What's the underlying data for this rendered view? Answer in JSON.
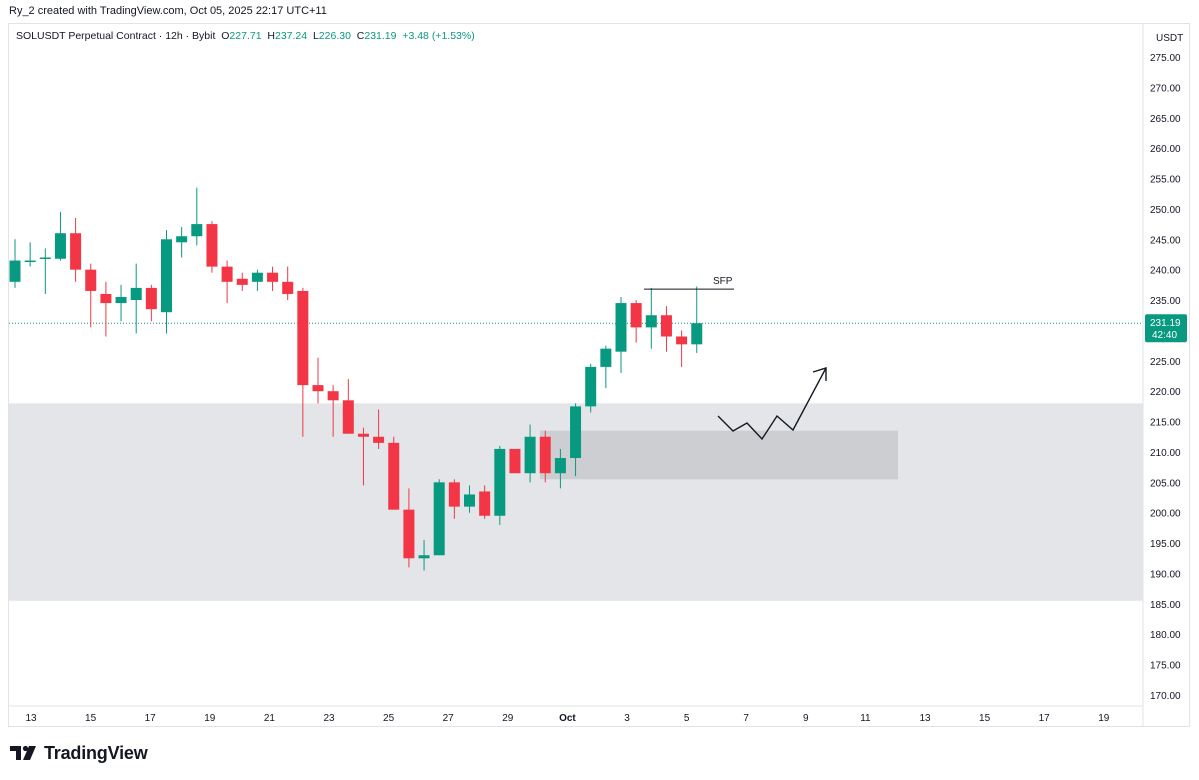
{
  "credit": "Ry_2 created with TradingView.com, Oct 05, 2025 22:17 UTC+11",
  "legend": {
    "symbol": "SOLUSDT Perpetual Contract · 12h · Bybit",
    "o_label": "O",
    "o_value": "227.71",
    "h_label": "H",
    "h_value": "237.24",
    "l_label": "L",
    "l_value": "226.30",
    "c_label": "C",
    "c_value": "231.19",
    "change": "+3.48 (+1.53%)"
  },
  "price_axis": {
    "currency": "USDT",
    "last_price": "231.19",
    "countdown": "42:40"
  },
  "brand": {
    "name": "TradingView"
  },
  "colors": {
    "up": "#089981",
    "down": "#f23645",
    "zone": "#e2e4e7",
    "inner_zone": "#c9cacd"
  },
  "annotation": {
    "sfp_label": "SFP"
  },
  "chart_data": {
    "type": "candlestick",
    "interval": "12h",
    "y_ticks": [
      170,
      175,
      180,
      185,
      190,
      195,
      200,
      205,
      210,
      215,
      220,
      225,
      230,
      235,
      240,
      245,
      250,
      255,
      260,
      265,
      270,
      275
    ],
    "ylim": [
      167,
      278
    ],
    "x_ticks": [
      "13",
      "15",
      "17",
      "19",
      "21",
      "23",
      "25",
      "27",
      "29",
      "Oct",
      "3",
      "5",
      "7",
      "9",
      "11",
      "13",
      "15",
      "17",
      "19"
    ],
    "candles": [
      {
        "o": 238.0,
        "h": 245.0,
        "l": 237.0,
        "c": 241.5
      },
      {
        "o": 241.5,
        "h": 244.5,
        "l": 240.5,
        "c": 241.5
      },
      {
        "o": 241.8,
        "h": 243.5,
        "l": 236.0,
        "c": 242.0
      },
      {
        "o": 241.8,
        "h": 249.5,
        "l": 241.5,
        "c": 246.0
      },
      {
        "o": 246.0,
        "h": 248.5,
        "l": 238.0,
        "c": 240.0
      },
      {
        "o": 240.0,
        "h": 241.0,
        "l": 230.5,
        "c": 236.5
      },
      {
        "o": 236.0,
        "h": 238.0,
        "l": 229.0,
        "c": 234.5
      },
      {
        "o": 234.5,
        "h": 237.5,
        "l": 231.5,
        "c": 235.5
      },
      {
        "o": 235.0,
        "h": 241.0,
        "l": 229.5,
        "c": 237.0
      },
      {
        "o": 237.0,
        "h": 237.5,
        "l": 231.5,
        "c": 233.5
      },
      {
        "o": 233.0,
        "h": 246.5,
        "l": 229.5,
        "c": 245.0
      },
      {
        "o": 244.5,
        "h": 247.0,
        "l": 242.0,
        "c": 245.5
      },
      {
        "o": 245.5,
        "h": 253.5,
        "l": 244.0,
        "c": 247.5
      },
      {
        "o": 247.5,
        "h": 248.0,
        "l": 239.5,
        "c": 240.5
      },
      {
        "o": 240.5,
        "h": 241.5,
        "l": 234.5,
        "c": 238.0
      },
      {
        "o": 238.5,
        "h": 239.5,
        "l": 236.5,
        "c": 237.5
      },
      {
        "o": 238.0,
        "h": 240.0,
        "l": 236.5,
        "c": 239.5
      },
      {
        "o": 239.5,
        "h": 240.5,
        "l": 236.5,
        "c": 238.0
      },
      {
        "o": 238.0,
        "h": 240.5,
        "l": 235.0,
        "c": 236.0
      },
      {
        "o": 236.5,
        "h": 237.0,
        "l": 212.5,
        "c": 221.0
      },
      {
        "o": 221.0,
        "h": 225.5,
        "l": 218.0,
        "c": 220.0
      },
      {
        "o": 220.0,
        "h": 221.0,
        "l": 212.5,
        "c": 218.5
      },
      {
        "o": 218.5,
        "h": 222.0,
        "l": 213.0,
        "c": 213.0
      },
      {
        "o": 213.0,
        "h": 214.0,
        "l": 204.5,
        "c": 212.5
      },
      {
        "o": 212.5,
        "h": 217.0,
        "l": 210.5,
        "c": 211.5
      },
      {
        "o": 211.5,
        "h": 212.5,
        "l": 200.5,
        "c": 200.5
      },
      {
        "o": 200.5,
        "h": 204.0,
        "l": 191.0,
        "c": 192.5
      },
      {
        "o": 192.5,
        "h": 195.5,
        "l": 190.5,
        "c": 193.0
      },
      {
        "o": 193.0,
        "h": 205.5,
        "l": 193.0,
        "c": 205.0
      },
      {
        "o": 205.0,
        "h": 205.5,
        "l": 199.0,
        "c": 201.0
      },
      {
        "o": 201.0,
        "h": 204.5,
        "l": 200.0,
        "c": 203.0
      },
      {
        "o": 203.5,
        "h": 204.5,
        "l": 199.0,
        "c": 199.5
      },
      {
        "o": 199.5,
        "h": 211.0,
        "l": 198.0,
        "c": 210.5
      },
      {
        "o": 210.5,
        "h": 210.5,
        "l": 206.5,
        "c": 206.5
      },
      {
        "o": 206.5,
        "h": 214.5,
        "l": 205.0,
        "c": 212.5
      },
      {
        "o": 212.5,
        "h": 213.5,
        "l": 205.0,
        "c": 206.5
      },
      {
        "o": 206.5,
        "h": 210.5,
        "l": 204.0,
        "c": 209.0
      },
      {
        "o": 209.0,
        "h": 218.0,
        "l": 206.0,
        "c": 217.5
      },
      {
        "o": 217.5,
        "h": 224.5,
        "l": 216.5,
        "c": 224.0
      },
      {
        "o": 224.0,
        "h": 227.5,
        "l": 220.5,
        "c": 227.0
      },
      {
        "o": 226.5,
        "h": 235.5,
        "l": 223.0,
        "c": 234.5
      },
      {
        "o": 234.5,
        "h": 235.0,
        "l": 228.0,
        "c": 230.5
      },
      {
        "o": 230.5,
        "h": 237.0,
        "l": 227.0,
        "c": 232.5
      },
      {
        "o": 232.5,
        "h": 234.0,
        "l": 226.5,
        "c": 229.0
      },
      {
        "o": 229.0,
        "h": 230.0,
        "l": 224.0,
        "c": 227.71
      },
      {
        "o": 227.71,
        "h": 237.24,
        "l": 226.3,
        "c": 231.19
      }
    ],
    "zones": [
      {
        "label": "outer",
        "from": 185.5,
        "to": 218.0
      },
      {
        "label": "inner",
        "from": 205.5,
        "to": 213.5
      }
    ],
    "sfp_level": 236.8,
    "last_price": 231.19
  }
}
